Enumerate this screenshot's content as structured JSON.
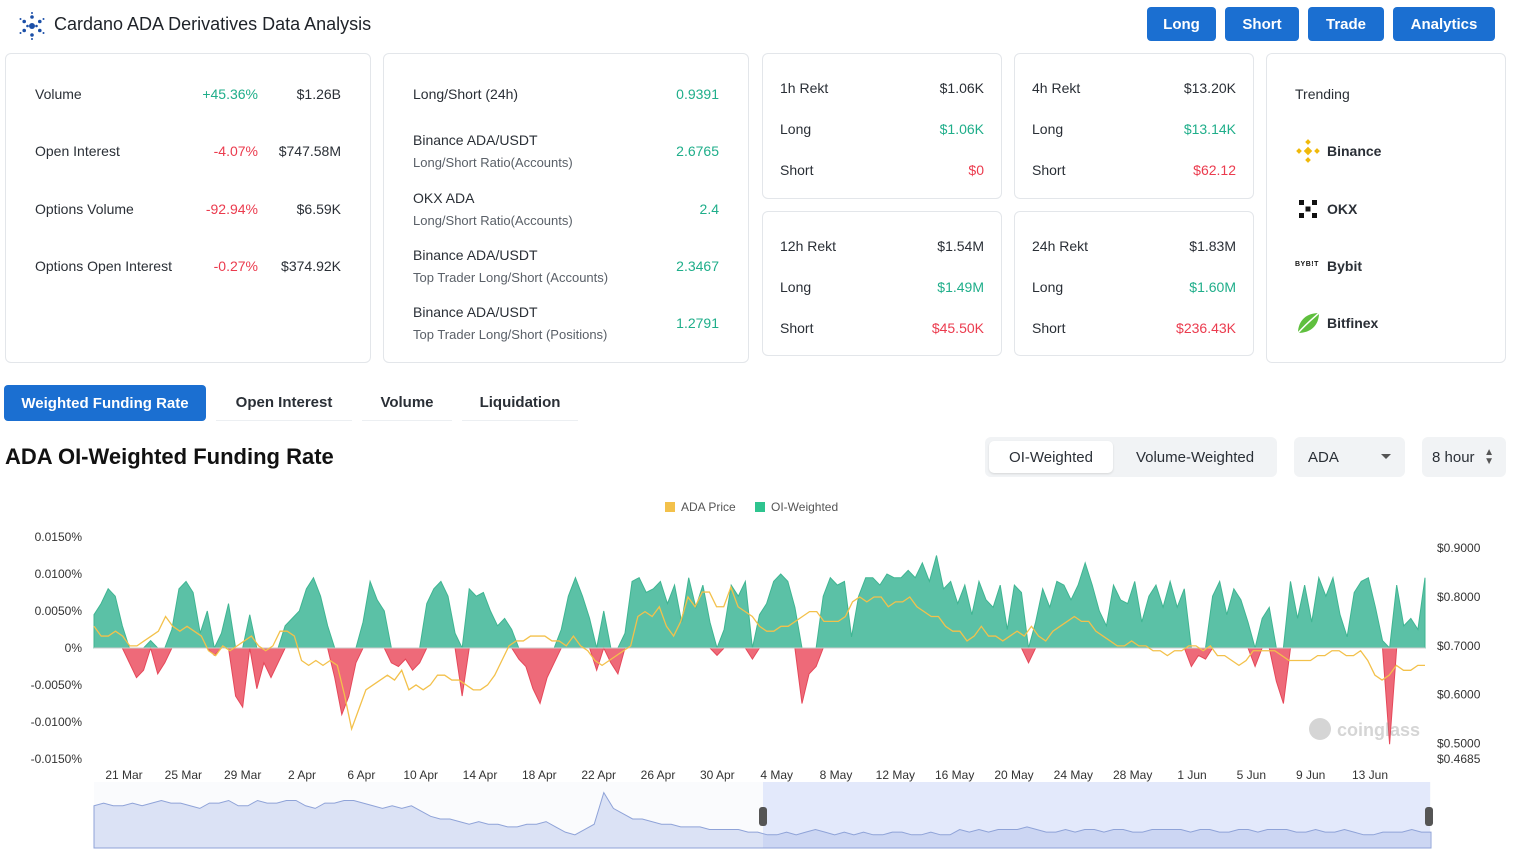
{
  "header": {
    "title": "Cardano ADA Derivatives Data Analysis"
  },
  "nav_buttons": [
    "Long",
    "Short",
    "Trade",
    "Analytics"
  ],
  "summary": {
    "rows": [
      {
        "label": "Volume",
        "change": "+45.36%",
        "value": "$1.26B"
      },
      {
        "label": "Open Interest",
        "change": "-4.07%",
        "value": "$747.58M"
      },
      {
        "label": "Options Volume",
        "change": "-92.94%",
        "value": "$6.59K"
      },
      {
        "label": "Options Open Interest",
        "change": "-0.27%",
        "value": "$374.92K"
      }
    ]
  },
  "ratios": {
    "items": [
      {
        "title": "Long/Short (24h)",
        "subtitle": "",
        "value": "0.9391"
      },
      {
        "title": "Binance ADA/USDT",
        "subtitle": "Long/Short Ratio(Accounts)",
        "value": "2.6765"
      },
      {
        "title": "OKX ADA",
        "subtitle": "Long/Short Ratio(Accounts)",
        "value": "2.4"
      },
      {
        "title": "Binance ADA/USDT",
        "subtitle": "Top Trader Long/Short (Accounts)",
        "value": "2.3467"
      },
      {
        "title": "Binance ADA/USDT",
        "subtitle": "Top Trader Long/Short (Positions)",
        "value": "1.2791"
      }
    ]
  },
  "rekt": [
    {
      "label": "1h Rekt",
      "total": "$1.06K",
      "long_label": "Long",
      "long": "$1.06K",
      "short_label": "Short",
      "short": "$0"
    },
    {
      "label": "4h Rekt",
      "total": "$13.20K",
      "long_label": "Long",
      "long": "$13.14K",
      "short_label": "Short",
      "short": "$62.12"
    },
    {
      "label": "12h Rekt",
      "total": "$1.54M",
      "long_label": "Long",
      "long": "$1.49M",
      "short_label": "Short",
      "short": "$45.50K"
    },
    {
      "label": "24h Rekt",
      "total": "$1.83M",
      "long_label": "Long",
      "long": "$1.60M",
      "short_label": "Short",
      "short": "$236.43K"
    }
  ],
  "trending": {
    "title": "Trending",
    "items": [
      "Binance",
      "OKX",
      "Bybit",
      "Bitfinex"
    ],
    "bybit_logo_text": "BYB!T"
  },
  "tabs": [
    "Weighted Funding Rate",
    "Open Interest",
    "Volume",
    "Liquidation"
  ],
  "chart_section": {
    "title": "ADA OI-Weighted Funding Rate",
    "weight_options": [
      "OI-Weighted",
      "Volume-Weighted"
    ],
    "coin_select": "ADA",
    "interval_select": "8 hour"
  },
  "colors": {
    "accent": "#1b6fd1",
    "positive": "#1fae8a",
    "negative": "#eb3b4e",
    "price": "#f3c14b"
  },
  "chart_data": {
    "type": "area",
    "title": "ADA OI-Weighted Funding Rate",
    "legend": [
      "ADA Price",
      "OI-Weighted"
    ],
    "legend_position": "top-center",
    "x_ticks": [
      "21 Mar",
      "25 Mar",
      "29 Mar",
      "2 Apr",
      "6 Apr",
      "10 Apr",
      "14 Apr",
      "18 Apr",
      "22 Apr",
      "26 Apr",
      "30 Apr",
      "4 May",
      "8 May",
      "12 May",
      "16 May",
      "20 May",
      "24 May",
      "28 May",
      "1 Jun",
      "5 Jun",
      "9 Jun",
      "13 Jun"
    ],
    "y_left_ticks": [
      "0.0150%",
      "0.0100%",
      "0.0050%",
      "0%",
      "-0.0050%",
      "-0.0100%",
      "-0.0150%"
    ],
    "y_left_range": [
      -0.015,
      0.015
    ],
    "y_right_ticks": [
      "$0.9000",
      "$0.8000",
      "$0.7000",
      "$0.6000",
      "$0.5000",
      "$0.4685"
    ],
    "y_right_range": [
      0.4685,
      0.9227
    ],
    "watermark": "coinglass",
    "series": [
      {
        "name": "OI-Weighted",
        "unit": "%",
        "values": [
          0.0045,
          0.006,
          0.008,
          0.007,
          0.003,
          -0.002,
          -0.004,
          -0.003,
          0.001,
          -0.0035,
          -0.002,
          0.0025,
          0.008,
          0.009,
          0.0075,
          0.002,
          0.005,
          -0.001,
          0.002,
          0.006,
          -0.0065,
          -0.008,
          0.0045,
          -0.0055,
          -0.002,
          -0.004,
          -0.002,
          0.003,
          0.004,
          0.005,
          0.008,
          0.0095,
          0.007,
          0.003,
          -0.004,
          -0.009,
          -0.0065,
          -0.002,
          0.0035,
          0.009,
          0.0065,
          0.005,
          -0.002,
          -0.0025,
          -0.0015,
          -0.003,
          -0.002,
          0.006,
          0.008,
          0.009,
          0.007,
          0.002,
          -0.0065,
          0.008,
          0.007,
          0.0075,
          0.005,
          0.003,
          0.004,
          0.0025,
          -0.0015,
          -0.0025,
          -0.0055,
          -0.0075,
          -0.004,
          -0.002,
          0.0025,
          0.007,
          0.0095,
          0.007,
          0.004,
          -0.003,
          0.005,
          -0.002,
          -0.0035,
          0.002,
          0.009,
          0.0095,
          0.0075,
          0.008,
          0.009,
          0.006,
          0.0085,
          0.0035,
          0.0095,
          0.0055,
          0.0085,
          0.0035,
          -0.001,
          0.0025,
          0.0085,
          0.007,
          0.009,
          -0.0015,
          0.0045,
          0.006,
          0.009,
          0.01,
          0.009,
          0.0055,
          -0.0075,
          -0.0035,
          -0.0025,
          0.007,
          0.0095,
          0.0085,
          0.009,
          0.0015,
          0.007,
          0.0095,
          0.0095,
          0.0085,
          0.01,
          0.0095,
          0.0095,
          0.0105,
          0.0095,
          0.0115,
          0.009,
          0.0125,
          0.008,
          0.009,
          0.006,
          0.0085,
          0.0045,
          0.009,
          0.0065,
          0.0055,
          0.0085,
          0.0025,
          0.0085,
          0.0075,
          -0.002,
          0.0035,
          0.008,
          0.0055,
          0.009,
          0.0085,
          0.0065,
          0.0085,
          0.0115,
          0.0085,
          0.005,
          0.003,
          0.0085,
          0.0065,
          0.006,
          0.009,
          0.0035,
          0.007,
          0.0085,
          0.0055,
          0.009,
          0.0055,
          0.008,
          -0.0025,
          -0.001,
          -0.0015,
          0.007,
          0.009,
          0.0045,
          0.008,
          0.0065,
          0.0035,
          -0.0025,
          0.004,
          0.0055,
          -0.0045,
          -0.0075,
          0.009,
          0.004,
          0.0085,
          0.0035,
          0.0095,
          0.007,
          0.0095,
          0.0045,
          0.0015,
          0.0075,
          0.009,
          0.0095,
          0.0055,
          0.001,
          -0.013,
          0.0085,
          0.003,
          0.004,
          0.0025,
          0.0095
        ]
      },
      {
        "name": "ADA Price",
        "unit": "USD",
        "values": [
          0.74,
          0.72,
          0.72,
          0.73,
          0.72,
          0.7,
          0.7,
          0.71,
          0.72,
          0.73,
          0.76,
          0.74,
          0.73,
          0.74,
          0.73,
          0.72,
          0.69,
          0.68,
          0.7,
          0.69,
          0.7,
          0.71,
          0.72,
          0.7,
          0.69,
          0.7,
          0.73,
          0.73,
          0.72,
          0.67,
          0.66,
          0.67,
          0.66,
          0.67,
          0.66,
          0.6,
          0.53,
          0.57,
          0.61,
          0.62,
          0.63,
          0.64,
          0.63,
          0.65,
          0.61,
          0.62,
          0.61,
          0.62,
          0.64,
          0.64,
          0.63,
          0.63,
          0.62,
          0.61,
          0.61,
          0.62,
          0.64,
          0.67,
          0.7,
          0.71,
          0.71,
          0.72,
          0.72,
          0.72,
          0.71,
          0.71,
          0.7,
          0.72,
          0.7,
          0.69,
          0.67,
          0.66,
          0.67,
          0.68,
          0.69,
          0.7,
          0.76,
          0.77,
          0.76,
          0.78,
          0.74,
          0.72,
          0.75,
          0.8,
          0.78,
          0.81,
          0.81,
          0.78,
          0.78,
          0.82,
          0.78,
          0.77,
          0.76,
          0.74,
          0.73,
          0.73,
          0.74,
          0.74,
          0.75,
          0.76,
          0.77,
          0.77,
          0.75,
          0.75,
          0.75,
          0.76,
          0.79,
          0.8,
          0.79,
          0.8,
          0.8,
          0.78,
          0.79,
          0.79,
          0.8,
          0.78,
          0.77,
          0.76,
          0.76,
          0.74,
          0.73,
          0.73,
          0.71,
          0.72,
          0.74,
          0.72,
          0.72,
          0.71,
          0.72,
          0.73,
          0.72,
          0.74,
          0.72,
          0.71,
          0.73,
          0.74,
          0.75,
          0.76,
          0.75,
          0.75,
          0.73,
          0.72,
          0.71,
          0.7,
          0.7,
          0.71,
          0.7,
          0.7,
          0.69,
          0.69,
          0.68,
          0.69,
          0.69,
          0.7,
          0.7,
          0.69,
          0.7,
          0.68,
          0.68,
          0.67,
          0.66,
          0.67,
          0.69,
          0.69,
          0.69,
          0.69,
          0.68,
          0.67,
          0.67,
          0.67,
          0.67,
          0.68,
          0.68,
          0.69,
          0.69,
          0.68,
          0.68,
          0.69,
          0.67,
          0.64,
          0.63,
          0.64,
          0.66,
          0.65,
          0.65,
          0.66,
          0.66
        ]
      }
    ],
    "navigator_price_values": [
      0.71,
      0.72,
      0.71,
      0.71,
      0.72,
      0.71,
      0.72,
      0.73,
      0.72,
      0.72,
      0.71,
      0.7,
      0.72,
      0.72,
      0.73,
      0.71,
      0.71,
      0.73,
      0.72,
      0.72,
      0.73,
      0.73,
      0.71,
      0.7,
      0.72,
      0.72,
      0.73,
      0.73,
      0.72,
      0.71,
      0.7,
      0.71,
      0.7,
      0.71,
      0.69,
      0.67,
      0.66,
      0.66,
      0.65,
      0.64,
      0.65,
      0.64,
      0.64,
      0.63,
      0.63,
      0.64,
      0.64,
      0.65,
      0.63,
      0.61,
      0.6,
      0.62,
      0.64,
      0.76,
      0.7,
      0.68,
      0.66,
      0.66,
      0.65,
      0.64,
      0.64,
      0.63,
      0.63,
      0.63,
      0.62,
      0.62,
      0.62,
      0.62,
      0.61,
      0.61,
      0.6,
      0.6,
      0.61,
      0.6,
      0.61,
      0.62,
      0.61,
      0.6,
      0.61,
      0.6,
      0.61,
      0.6,
      0.6,
      0.61,
      0.61,
      0.6,
      0.6,
      0.61,
      0.6,
      0.6,
      0.62,
      0.61,
      0.62,
      0.61,
      0.62,
      0.62,
      0.62,
      0.63,
      0.62,
      0.61,
      0.61,
      0.62,
      0.61,
      0.62,
      0.62,
      0.61,
      0.62,
      0.62,
      0.61,
      0.61,
      0.62,
      0.62,
      0.62,
      0.62,
      0.61,
      0.62,
      0.62,
      0.61,
      0.61,
      0.62,
      0.62,
      0.61,
      0.62,
      0.62,
      0.62,
      0.61,
      0.61,
      0.62,
      0.61,
      0.61,
      0.62,
      0.61,
      0.6,
      0.6,
      0.61,
      0.61,
      0.61,
      0.62,
      0.61,
      0.61
    ]
  }
}
